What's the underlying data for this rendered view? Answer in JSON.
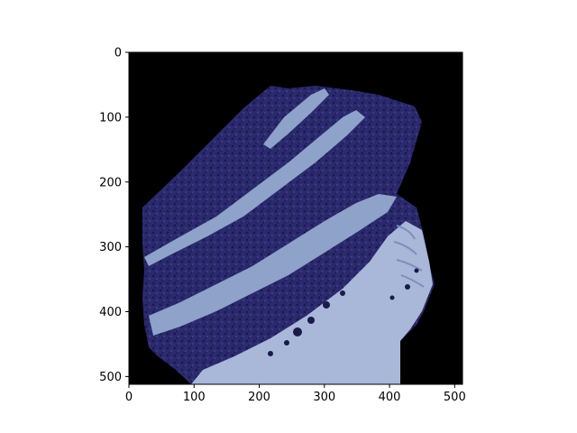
{
  "figure": {
    "background": "#ffffff",
    "image_description_icon": "cake-slice-image"
  },
  "axes": {
    "xlim": [
      0,
      512
    ],
    "ylim": [
      512,
      0
    ],
    "x_ticks": [
      "0",
      "100",
      "200",
      "300",
      "400",
      "500"
    ],
    "y_ticks": [
      "0",
      "100",
      "200",
      "300",
      "400",
      "500"
    ],
    "x_tick_values": [
      0,
      100,
      200,
      300,
      400,
      500
    ],
    "y_tick_values": [
      0,
      100,
      200,
      300,
      400,
      500
    ]
  },
  "image_colors": {
    "background": "#000000",
    "sponge": "#2b2a6e",
    "sponge_dark": "#1b1a4a",
    "frosting": "#8fa2c9",
    "frosting_light": "#a9b8d8"
  }
}
